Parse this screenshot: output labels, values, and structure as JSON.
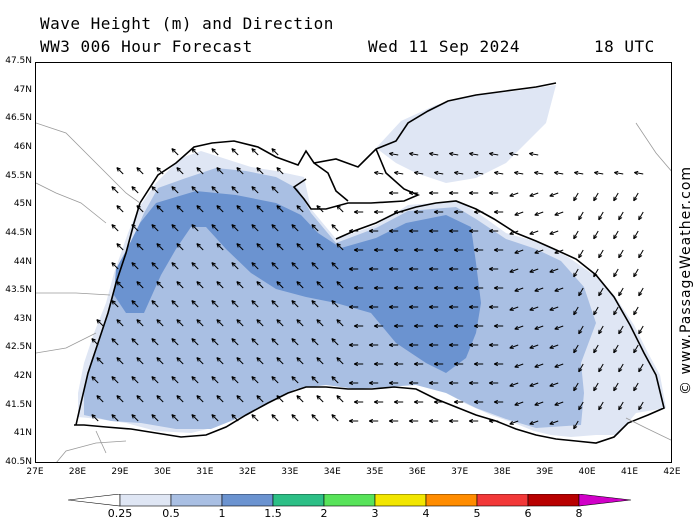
{
  "header": {
    "title": "Wave Height (m) and Direction",
    "forecast": "WW3 006 Hour Forecast",
    "date": "Wed 11 Sep 2024",
    "time": "18 UTC"
  },
  "credit": "© www.PassageWeather.com",
  "map": {
    "region": "Black Sea",
    "lon_range": [
      27,
      42
    ],
    "lat_range": [
      40.5,
      47.5
    ],
    "lat_ticks": [
      "47.5N",
      "47N",
      "46.5N",
      "46N",
      "45.5N",
      "45N",
      "44.5N",
      "44N",
      "43.5N",
      "43N",
      "42.5N",
      "42N",
      "41.5N",
      "41N",
      "40.5N"
    ],
    "lon_ticks": [
      "27E",
      "28E",
      "29E",
      "30E",
      "31E",
      "32E",
      "33E",
      "34E",
      "35E",
      "36E",
      "37E",
      "38E",
      "39E",
      "40E",
      "41E",
      "42E"
    ],
    "land_color": "#ffffff",
    "coast_color": "#000000",
    "prevailing_wave_direction": "arrows point NW in west basin, W in central basin, SW near east coast"
  },
  "legend": {
    "unit": "m",
    "labels": [
      "0.25",
      "0.5",
      "1",
      "1.5",
      "2",
      "3",
      "4",
      "5",
      "6",
      "8"
    ],
    "colors": [
      "#dfe6f4",
      "#a9bfe3",
      "#6b93d0",
      "#2dbf86",
      "#58e35a",
      "#f2e600",
      "#ff8c00",
      "#f23838",
      "#b80000",
      "#d100c8"
    ]
  }
}
